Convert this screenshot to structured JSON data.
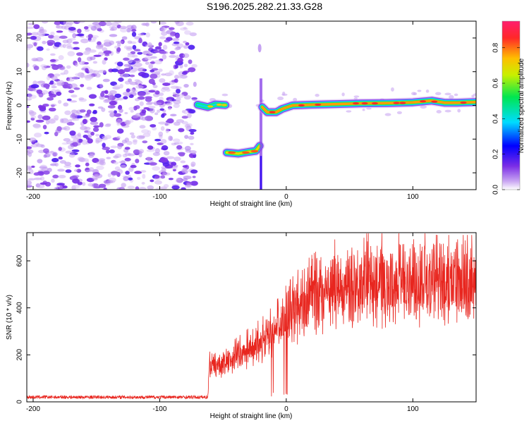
{
  "title": "S196.2025.282.21.33.G28",
  "chart_data": [
    {
      "type": "heatmap",
      "name": "spectrogram",
      "xlabel": "Height of straight line (km)",
      "ylabel": "Frequency (Hz)",
      "xlim": [
        -205,
        150
      ],
      "ylim": [
        -25,
        25
      ],
      "xticks": [
        -200,
        -100,
        0,
        100
      ],
      "yticks": [
        -20,
        -10,
        0,
        10,
        20
      ],
      "colorbar": {
        "label": "Normalized spectral amplitude",
        "range": [
          0,
          0.95
        ],
        "ticks": [
          0.0,
          0.2,
          0.4,
          0.6,
          0.8
        ]
      },
      "noise_region": {
        "x": [
          -205,
          -72
        ],
        "y": [
          -25,
          25
        ],
        "amplitude": [
          0.05,
          0.25
        ]
      },
      "features": [
        {
          "name": "segment-1",
          "x": [
            -72,
            -45
          ],
          "freq": 0,
          "amplitude": 0.45
        },
        {
          "name": "segment-2",
          "x": [
            -47,
            -20
          ],
          "freq": -14,
          "amplitude": 0.8
        },
        {
          "name": "vertical-trace",
          "x": [
            -20,
            -20
          ],
          "freq": [
            -25,
            18
          ],
          "amplitude": 0.15
        },
        {
          "name": "segment-3",
          "x": [
            -20,
            150
          ],
          "freq": [
            -2,
            0,
            0.5,
            1,
            1.5
          ],
          "amplitude": 0.85
        }
      ]
    },
    {
      "type": "line",
      "name": "snr",
      "xlabel": "Height of straight line (km)",
      "ylabel": "SNR (10 * v/v)",
      "xlim": [
        -205,
        150
      ],
      "ylim": [
        0,
        720
      ],
      "xticks": [
        -200,
        -100,
        0,
        100
      ],
      "yticks": [
        0,
        200,
        400,
        600
      ],
      "color": "#e8261f",
      "series": [
        {
          "name": "SNR",
          "x": [
            -205,
            -150,
            -100,
            -62,
            -61,
            -50,
            -40,
            -30,
            -20,
            -10,
            0,
            10,
            20,
            30,
            40,
            50,
            60,
            70,
            80,
            90,
            100,
            110,
            120,
            130,
            140,
            150
          ],
          "y": [
            20,
            20,
            20,
            20,
            150,
            160,
            190,
            220,
            250,
            290,
            350,
            400,
            440,
            470,
            490,
            500,
            505,
            505,
            505,
            505,
            505,
            505,
            500,
            500,
            500,
            500
          ]
        }
      ]
    }
  ]
}
